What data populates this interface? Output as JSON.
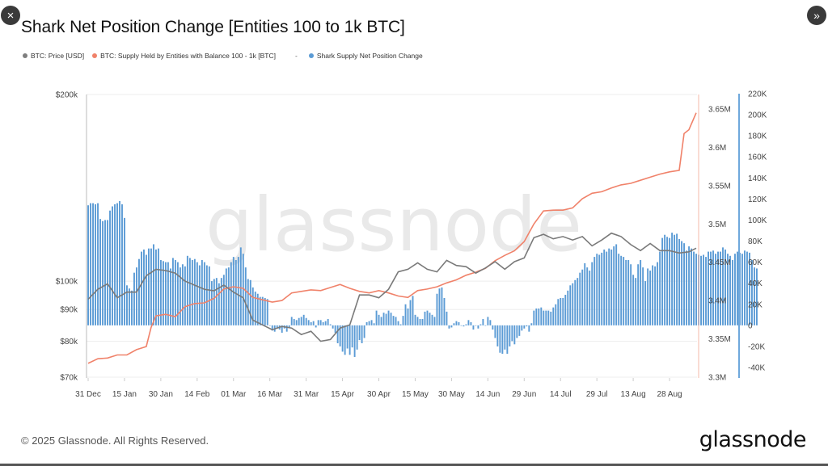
{
  "window": {
    "close_icon": "×",
    "expand_icon": "»"
  },
  "title": "Shark Net Position Change [Entities 100 to 1k BTC]",
  "legend": {
    "items": [
      {
        "label": "BTC: Price [USD]",
        "color": "#7f7f7f"
      },
      {
        "label": "BTC: Supply Held by Entities with Balance 100 - 1k [BTC]",
        "color": "#f0826a"
      },
      {
        "label": "Shark Supply Net Position Change",
        "color": "#5b9bd5"
      }
    ],
    "separator": "-"
  },
  "watermark": "glassnode",
  "footer": {
    "copyright": "© 2025 Glassnode. All Rights Reserved.",
    "logo": "glassnode"
  },
  "colors": {
    "price": "#7a7a7a",
    "supply": "#f0826a",
    "bars": "#5b9bd5",
    "grid": "#eeeeee",
    "right_axis_line": "#6fa8dc",
    "supply_axis_line": "#f6b9a8"
  },
  "chart_data": {
    "type": "bar+line",
    "title": "Shark Net Position Change [Entities 100 to 1k BTC]",
    "xlabel": "",
    "x_ticks": [
      "31 Dec",
      "15 Jan",
      "30 Jan",
      "14 Feb",
      "01 Mar",
      "16 Mar",
      "31 Mar",
      "15 Apr",
      "30 Apr",
      "15 May",
      "30 May",
      "14 Jun",
      "29 Jun",
      "14 Jul",
      "29 Jul",
      "13 Aug",
      "28 Aug"
    ],
    "axes": {
      "price_left": {
        "label": "BTC: Price [USD]",
        "scale": "log",
        "ticks": [
          "$70k",
          "$80k",
          "$90k",
          "$100k",
          "$200k"
        ],
        "range": [
          70000,
          200000
        ]
      },
      "supply_right": {
        "label": "BTC: Supply Held by Entities with Balance 100 - 1k [BTC]",
        "ticks": [
          "3.3M",
          "3.35M",
          "3.4M",
          "3.45M",
          "3.5M",
          "3.55M",
          "3.6M",
          "3.65M"
        ],
        "range": [
          3300000,
          3670000
        ]
      },
      "net_change_right": {
        "label": "Shark Supply Net Position Change",
        "ticks": [
          "-40K",
          "-20K",
          "0",
          "20K",
          "40K",
          "60K",
          "80K",
          "100K",
          "120K",
          "140K",
          "160K",
          "180K",
          "200K",
          "220K"
        ],
        "range": [
          -40000,
          220000
        ]
      }
    },
    "legend_position": "top",
    "grid": true,
    "series": [
      {
        "name": "BTC: Price [USD]",
        "type": "line",
        "axis": "price_left",
        "color": "#7a7a7a",
        "x_days": [
          0,
          4,
          8,
          12,
          16,
          20,
          24,
          28,
          32,
          36,
          40,
          44,
          48,
          52,
          56,
          60,
          64,
          68,
          72,
          76,
          80,
          84,
          88,
          92,
          96,
          100,
          104,
          108,
          112,
          116,
          120,
          124,
          128,
          132,
          136,
          140,
          144,
          148,
          152,
          156,
          160,
          164,
          168,
          172,
          176,
          180,
          184,
          188,
          192,
          196,
          200,
          204,
          208,
          212,
          216,
          220,
          224,
          228,
          232,
          236,
          240,
          244,
          248,
          251
        ],
        "values": [
          93500,
          97000,
          99000,
          94000,
          96000,
          96000,
          102000,
          104500,
          104000,
          103000,
          100000,
          98500,
          97000,
          96500,
          98500,
          96000,
          94000,
          86500,
          85000,
          83500,
          84500,
          84000,
          82000,
          83000,
          80000,
          80500,
          84000,
          85000,
          95000,
          95000,
          94000,
          97000,
          103500,
          104500,
          107000,
          104500,
          103500,
          108000,
          106000,
          105500,
          103000,
          105000,
          107500,
          104500,
          107500,
          109000,
          117500,
          119000,
          117000,
          118000,
          116500,
          118000,
          114000,
          116500,
          119500,
          118000,
          114500,
          112000,
          115000,
          112000,
          112000,
          111000,
          111500,
          113000
        ]
      },
      {
        "name": "BTC: Supply Held by Entities with Balance 100 - 1k [BTC]",
        "type": "line",
        "axis": "supply_right",
        "color": "#f0826a",
        "x_days": [
          0,
          4,
          8,
          12,
          16,
          20,
          24,
          26,
          28,
          32,
          36,
          40,
          44,
          48,
          52,
          56,
          60,
          64,
          68,
          72,
          76,
          80,
          84,
          88,
          92,
          96,
          100,
          104,
          108,
          112,
          116,
          120,
          124,
          128,
          132,
          136,
          140,
          144,
          148,
          152,
          156,
          160,
          164,
          168,
          172,
          176,
          180,
          184,
          188,
          192,
          196,
          200,
          204,
          208,
          212,
          216,
          220,
          224,
          228,
          232,
          236,
          240,
          244,
          246,
          248,
          251
        ],
        "values": [
          3318000,
          3324000,
          3325000,
          3329000,
          3329000,
          3336000,
          3340000,
          3365000,
          3380000,
          3382000,
          3379000,
          3392000,
          3396000,
          3397000,
          3403000,
          3415000,
          3418000,
          3416000,
          3404000,
          3401000,
          3398000,
          3400000,
          3410000,
          3412000,
          3414000,
          3413000,
          3417000,
          3421000,
          3416000,
          3412000,
          3410000,
          3413000,
          3410000,
          3406000,
          3404000,
          3413000,
          3415000,
          3418000,
          3423000,
          3427000,
          3433000,
          3437000,
          3442000,
          3452000,
          3459000,
          3465000,
          3477000,
          3500000,
          3517000,
          3518000,
          3518000,
          3521000,
          3533000,
          3540000,
          3542000,
          3547000,
          3551000,
          3553000,
          3557000,
          3561000,
          3565000,
          3568000,
          3570000,
          3618000,
          3623000,
          3645000
        ]
      },
      {
        "name": "Shark Supply Net Position Change",
        "type": "bar",
        "axis": "net_change_right",
        "color": "#5b9bd5",
        "x_days_step": 1,
        "values": [
          114000,
          116000,
          116000,
          115000,
          116000,
          101000,
          99000,
          100000,
          100000,
          109000,
          113000,
          115000,
          116000,
          118000,
          115000,
          102000,
          38000,
          35000,
          33000,
          50000,
          55000,
          63000,
          70000,
          72000,
          67000,
          73000,
          73000,
          77000,
          72000,
          73000,
          62000,
          61000,
          60000,
          60000,
          54000,
          64000,
          62000,
          60000,
          55000,
          58000,
          56000,
          66000,
          64000,
          62000,
          63000,
          60000,
          57000,
          62000,
          60000,
          57000,
          56000,
          42000,
          44000,
          45000,
          40000,
          45000,
          48000,
          54000,
          55000,
          60000,
          65000,
          62000,
          65000,
          74000,
          68000,
          55000,
          44000,
          43000,
          36000,
          32000,
          30000,
          27000,
          27000,
          26000,
          25000,
          0,
          -5000,
          -6000,
          -3000,
          -4000,
          -7000,
          -3000,
          -6000,
          -2000,
          8000,
          6000,
          5000,
          7000,
          8000,
          10000,
          7000,
          5000,
          3000,
          4000,
          -2000,
          5000,
          5000,
          3000,
          4000,
          6000,
          1000,
          -3000,
          -7000,
          -17000,
          -20000,
          -25000,
          -28000,
          -22000,
          -28000,
          -21000,
          -30000,
          -23000,
          -14000,
          -17000,
          -12000,
          3000,
          4000,
          5000,
          2000,
          14000,
          10000,
          8000,
          12000,
          11000,
          14000,
          12000,
          9000,
          8000,
          4000,
          1000,
          9000,
          20000,
          16000,
          24000,
          28000,
          10000,
          8000,
          6000,
          6000,
          13000,
          14000,
          12000,
          10000,
          8000,
          30000,
          35000,
          36000,
          26000,
          13000,
          -3000,
          -2000,
          2000,
          4000,
          3000,
          0,
          -1000,
          1000,
          5000,
          3000,
          -4000,
          0,
          -3000,
          1000,
          6000,
          0,
          8000,
          5000,
          -4000,
          -12000,
          -20000,
          -26000,
          -27000,
          -23000,
          -27000,
          -20000,
          -15000,
          -18000,
          -12000,
          -10000,
          -5000,
          -3000,
          -1000,
          -6000,
          2000,
          14000,
          16000,
          16000,
          17000,
          14000,
          14000,
          14000,
          13000,
          17000,
          20000,
          25000,
          26000,
          26000,
          29000,
          33000,
          38000,
          40000,
          43000,
          45000,
          50000,
          53000,
          59000,
          55000,
          52000,
          60000,
          65000,
          68000,
          67000,
          69000,
          72000,
          70000,
          73000,
          72000,
          75000,
          77000,
          68000,
          66000,
          65000,
          62000,
          62000,
          58000,
          48000,
          45000,
          58000,
          62000,
          55000,
          42000,
          54000,
          52000,
          57000,
          56000,
          60000,
          70000,
          83000,
          86000,
          84000,
          83000,
          88000,
          86000,
          87000,
          82000,
          80000,
          78000,
          71000,
          75000,
          73000,
          70000,
          68000,
          67000,
          66000,
          67000,
          65000,
          70000,
          70000,
          71000,
          68000,
          70000,
          70000,
          74000,
          72000,
          68000,
          66000,
          62000,
          68000,
          70000,
          69000,
          68000,
          71000,
          70000,
          69000,
          62000,
          55000,
          54000
        ]
      }
    ]
  }
}
